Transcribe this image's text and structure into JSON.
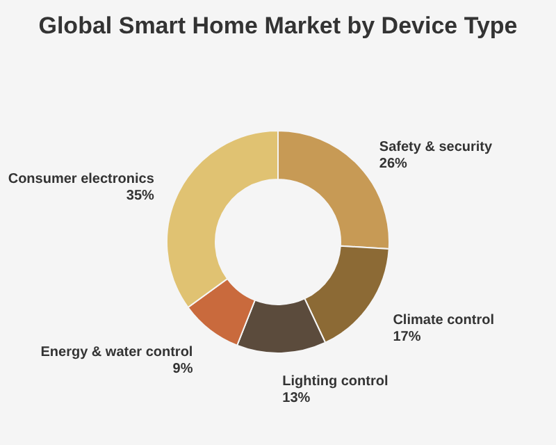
{
  "chart_data": {
    "type": "donut",
    "title": "Global Smart Home Market by Device Type",
    "categories": [
      "Safety & security",
      "Climate control",
      "Lighting control",
      "Energy & water control",
      "Consumer electronics"
    ],
    "values": [
      26,
      17,
      13,
      9,
      35
    ],
    "colors": [
      "#c79a55",
      "#8c6a35",
      "#5b4b3c",
      "#c96a3d",
      "#e0c272"
    ],
    "value_labels": [
      "26%",
      "17%",
      "13%",
      "9%",
      "35%"
    ],
    "legend": false
  }
}
